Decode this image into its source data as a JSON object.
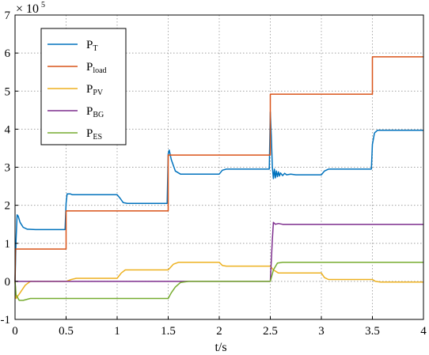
{
  "chart_data": {
    "type": "line",
    "xlabel": "t/s",
    "ylabel": "",
    "y_multiplier": {
      "base": "× 10",
      "exponent": "5"
    },
    "xlim": [
      0,
      4
    ],
    "ylim": [
      -1,
      7
    ],
    "x_ticks": [
      "0",
      "0.5",
      "1",
      "1.5",
      "2",
      "2.5",
      "3",
      "3.5",
      "4"
    ],
    "y_ticks": [
      "-1",
      "0",
      "1",
      "2",
      "3",
      "4",
      "5",
      "6",
      "7"
    ],
    "grid": true,
    "legend_placement": "top-left",
    "series": [
      {
        "name": "P_T",
        "label_main": "P",
        "label_sub": "T",
        "color": "#0072BD",
        "points": [
          [
            0,
            0
          ],
          [
            0.01,
            1.1
          ],
          [
            0.02,
            1.75
          ],
          [
            0.03,
            1.72
          ],
          [
            0.05,
            1.55
          ],
          [
            0.08,
            1.42
          ],
          [
            0.12,
            1.37
          ],
          [
            0.2,
            1.36
          ],
          [
            0.49,
            1.36
          ],
          [
            0.5,
            2.05
          ],
          [
            0.51,
            2.3
          ],
          [
            0.54,
            2.3
          ],
          [
            0.56,
            2.28
          ],
          [
            1.0,
            2.28
          ],
          [
            1.03,
            2.18
          ],
          [
            1.06,
            2.07
          ],
          [
            1.1,
            2.05
          ],
          [
            1.49,
            2.05
          ],
          [
            1.5,
            3.35
          ],
          [
            1.51,
            3.45
          ],
          [
            1.53,
            3.2
          ],
          [
            1.57,
            2.9
          ],
          [
            1.62,
            2.82
          ],
          [
            2.0,
            2.82
          ],
          [
            2.03,
            2.92
          ],
          [
            2.07,
            2.95
          ],
          [
            2.49,
            2.95
          ],
          [
            2.5,
            4.45
          ],
          [
            2.51,
            3.8
          ],
          [
            2.52,
            3.0
          ],
          [
            2.53,
            2.7
          ],
          [
            2.54,
            2.95
          ],
          [
            2.55,
            2.72
          ],
          [
            2.56,
            2.9
          ],
          [
            2.57,
            2.75
          ],
          [
            2.58,
            2.88
          ],
          [
            2.59,
            2.77
          ],
          [
            2.6,
            2.85
          ],
          [
            2.62,
            2.78
          ],
          [
            2.64,
            2.84
          ],
          [
            2.66,
            2.8
          ],
          [
            2.7,
            2.82
          ],
          [
            2.75,
            2.8
          ],
          [
            3.0,
            2.8
          ],
          [
            3.03,
            2.9
          ],
          [
            3.07,
            2.95
          ],
          [
            3.49,
            2.95
          ],
          [
            3.5,
            3.6
          ],
          [
            3.52,
            3.9
          ],
          [
            3.55,
            3.97
          ],
          [
            4.0,
            3.97
          ]
        ]
      },
      {
        "name": "P_load",
        "label_main": "P",
        "label_sub": "load",
        "color": "#D95319",
        "points": [
          [
            0,
            0
          ],
          [
            0.005,
            0.85
          ],
          [
            0.5,
            0.85
          ],
          [
            0.5,
            1.85
          ],
          [
            1.5,
            1.85
          ],
          [
            1.5,
            3.32
          ],
          [
            2.5,
            3.32
          ],
          [
            2.5,
            4.92
          ],
          [
            3.5,
            4.92
          ],
          [
            3.5,
            5.9
          ],
          [
            4.0,
            5.9
          ]
        ]
      },
      {
        "name": "P_PV",
        "label_main": "P",
        "label_sub": "PV",
        "color": "#EDB120",
        "points": [
          [
            0,
            0
          ],
          [
            0.01,
            -0.45
          ],
          [
            0.05,
            -0.3
          ],
          [
            0.1,
            -0.1
          ],
          [
            0.15,
            0
          ],
          [
            0.5,
            0
          ],
          [
            0.55,
            0.05
          ],
          [
            0.6,
            0.08
          ],
          [
            1.0,
            0.08
          ],
          [
            1.04,
            0.22
          ],
          [
            1.08,
            0.3
          ],
          [
            1.5,
            0.3
          ],
          [
            1.55,
            0.45
          ],
          [
            1.6,
            0.5
          ],
          [
            2.0,
            0.5
          ],
          [
            2.03,
            0.42
          ],
          [
            2.07,
            0.4
          ],
          [
            2.5,
            0.4
          ],
          [
            2.53,
            0.3
          ],
          [
            2.58,
            0.22
          ],
          [
            3.0,
            0.22
          ],
          [
            3.03,
            0.1
          ],
          [
            3.07,
            0.05
          ],
          [
            3.5,
            0.05
          ],
          [
            3.53,
            0.0
          ],
          [
            3.58,
            -0.02
          ],
          [
            4.0,
            -0.02
          ]
        ]
      },
      {
        "name": "P_BG",
        "label_main": "P",
        "label_sub": "BG",
        "color": "#7E2F8E",
        "points": [
          [
            0,
            0
          ],
          [
            2.5,
            0
          ],
          [
            2.52,
            1.1
          ],
          [
            2.53,
            1.55
          ],
          [
            2.55,
            1.5
          ],
          [
            2.58,
            1.52
          ],
          [
            2.62,
            1.5
          ],
          [
            2.7,
            1.5
          ],
          [
            4.0,
            1.5
          ]
        ]
      },
      {
        "name": "P_ES",
        "label_main": "P",
        "label_sub": "ES",
        "color": "#77AC30",
        "points": [
          [
            0,
            0
          ],
          [
            0.01,
            -0.35
          ],
          [
            0.04,
            -0.5
          ],
          [
            0.08,
            -0.5
          ],
          [
            0.15,
            -0.45
          ],
          [
            0.5,
            -0.45
          ],
          [
            1.5,
            -0.45
          ],
          [
            1.53,
            -0.3
          ],
          [
            1.57,
            -0.15
          ],
          [
            1.62,
            -0.03
          ],
          [
            1.7,
            0
          ],
          [
            2.5,
            0
          ],
          [
            2.53,
            0.3
          ],
          [
            2.57,
            0.48
          ],
          [
            2.62,
            0.5
          ],
          [
            4.0,
            0.5
          ]
        ]
      }
    ]
  }
}
